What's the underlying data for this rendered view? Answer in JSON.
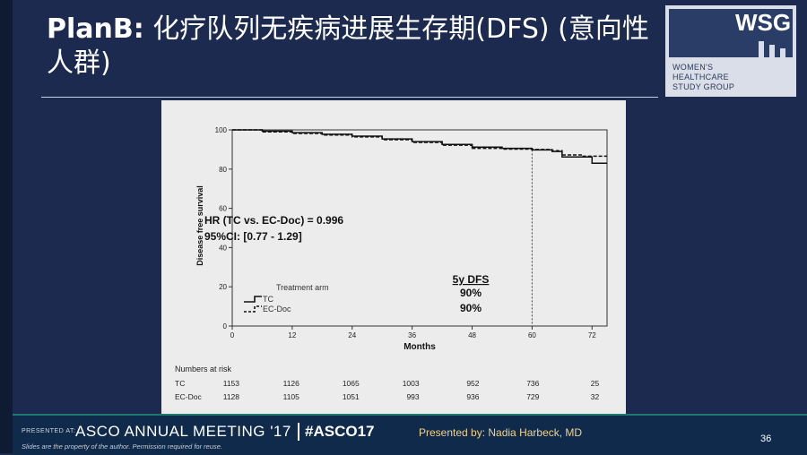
{
  "slide": {
    "title_bold": "PlanB:",
    "title_rest": "化疗队列无疾病进展生存期(DFS) (意向性人群)",
    "page_number": "36"
  },
  "logo": {
    "abbr": "WSG",
    "line1": "WOMEN'S",
    "line2": "HEALTHCARE",
    "line3": "STUDY GROUP"
  },
  "footer": {
    "presented_at": "PRESENTED AT:",
    "meeting": "ASCO ANNUAL MEETING '17",
    "hashtag": "#ASCO17",
    "presented_by": "Presented by: Nadia Harbeck, MD",
    "note": "Slides are the property of the author. Permission required for reuse."
  },
  "colors": {
    "background": "#1b2a4e",
    "footer": "#0f2a4a",
    "accent": "#f2d38a",
    "chart_bg": "#ececec"
  },
  "chart_data": {
    "type": "line",
    "title": "",
    "xlabel": "Months",
    "ylabel": "Disease free survival",
    "xlim": [
      0,
      75
    ],
    "ylim": [
      0,
      100
    ],
    "x_ticks": [
      0,
      12,
      24,
      36,
      48,
      60,
      72
    ],
    "y_ticks": [
      0,
      20,
      40,
      60,
      80,
      100
    ],
    "grid": false,
    "reference_line_x": 60,
    "series": [
      {
        "name": "TC",
        "style": "solid",
        "x": [
          0,
          6,
          12,
          18,
          24,
          30,
          36,
          42,
          48,
          54,
          60,
          64,
          66,
          72,
          72,
          75
        ],
        "y": [
          100,
          99.4,
          98.6,
          97.8,
          96.8,
          95.4,
          94.0,
          92.6,
          91.2,
          90.6,
          89.8,
          89.0,
          86.2,
          86.2,
          83.0,
          83.0
        ]
      },
      {
        "name": "EC-Doc",
        "style": "dashed",
        "x": [
          0,
          6,
          12,
          18,
          24,
          30,
          36,
          42,
          48,
          54,
          60,
          64,
          66,
          70,
          72,
          75
        ],
        "y": [
          100,
          99.0,
          98.2,
          97.4,
          96.4,
          95.0,
          93.6,
          92.2,
          90.6,
          90.2,
          90.0,
          89.4,
          87.2,
          86.6,
          86.6,
          86.6
        ]
      }
    ],
    "legend": {
      "title": "Treatment arm",
      "placement": "bottom-left",
      "entries": [
        "TC",
        "EC-Doc"
      ]
    },
    "annotations": {
      "hr_line1": "HR (TC vs. EC-Doc) = 0.996",
      "hr_line2": "95%CI: [0.77 - 1.29]",
      "dfs_title": "5y DFS",
      "dfs_tc": "90%",
      "dfs_ecdoc": "90%"
    },
    "risk_table": {
      "title": "Numbers at risk",
      "rows": [
        {
          "label": "TC",
          "values": [
            "1153",
            "1126",
            "1065",
            "1003",
            "952",
            "736",
            "25"
          ]
        },
        {
          "label": "EC-Doc",
          "values": [
            "1128",
            "1105",
            "1051",
            "993",
            "936",
            "729",
            "32"
          ]
        }
      ]
    }
  }
}
